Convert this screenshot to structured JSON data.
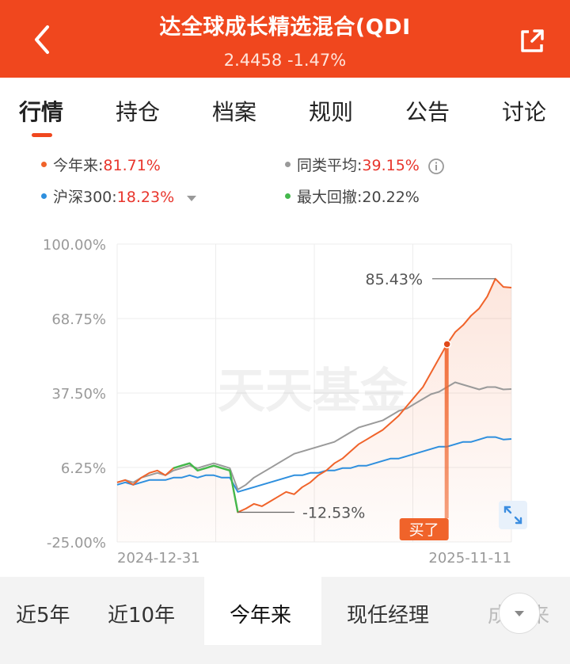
{
  "header": {
    "title": "达全球成长精选混合(QDI",
    "nav_value": "2.4458",
    "change": "-1.47%",
    "back_icon": "chevron-left-icon",
    "share_icon": "share-icon",
    "bg_color": "#f0471e"
  },
  "tabs": [
    {
      "label": "行情",
      "active": true
    },
    {
      "label": "持仓",
      "active": false
    },
    {
      "label": "档案",
      "active": false
    },
    {
      "label": "规则",
      "active": false
    },
    {
      "label": "公告",
      "active": false
    },
    {
      "label": "讨论",
      "active": false
    }
  ],
  "legend": {
    "ytd": {
      "label": "今年来:",
      "value": "81.71%",
      "color": "#f0632a"
    },
    "peer": {
      "label": "同类平均:",
      "value": "39.15%",
      "color": "#9a9a9a"
    },
    "index": {
      "label": "沪深300:",
      "value": "18.23%",
      "color": "#2e8fde"
    },
    "drawdown": {
      "label": "最大回撤:",
      "value": "20.22%",
      "color": "#44b84c"
    }
  },
  "chart_data": {
    "type": "line",
    "y_tick_labels": [
      "100.00%",
      "68.75%",
      "37.50%",
      "6.25%",
      "-25.00%"
    ],
    "ylim": [
      -25,
      100
    ],
    "x_tick_labels": [
      "2024-12-31",
      "2025-11-11"
    ],
    "grid": true,
    "watermark": "天天基金",
    "max_annotation": "85.43%",
    "min_annotation": "-12.53%",
    "buy_marker": "买了",
    "series": [
      {
        "name": "今年来",
        "color": "#f0632a",
        "values": [
          0,
          1,
          -1,
          2,
          4,
          5,
          3,
          6,
          7,
          8,
          5,
          6,
          7,
          6,
          5,
          -12.53,
          -11,
          -9,
          -10,
          -8,
          -6,
          -4,
          -5,
          -2,
          0,
          3,
          5,
          8,
          10,
          13,
          16,
          18,
          20,
          22,
          25,
          28,
          32,
          36,
          40,
          46,
          52,
          58,
          63,
          66,
          70,
          73,
          78,
          85.43,
          82,
          81.71
        ]
      },
      {
        "name": "同类平均",
        "color": "#9a9a9a",
        "values": [
          0,
          1,
          0,
          2,
          3,
          4,
          3,
          5,
          6,
          7,
          6,
          7,
          8,
          7,
          6,
          -3,
          -1,
          2,
          4,
          6,
          8,
          10,
          12,
          13,
          14,
          15,
          16,
          17,
          19,
          21,
          23,
          24,
          25,
          26,
          28,
          30,
          31,
          33,
          35,
          37,
          38,
          40,
          42,
          41,
          40,
          39,
          40,
          40,
          39,
          39.15
        ]
      },
      {
        "name": "沪深300",
        "color": "#2e8fde",
        "values": [
          -1,
          0,
          -1,
          0,
          1,
          1,
          1,
          2,
          2,
          3,
          2,
          3,
          3,
          2,
          2,
          -4,
          -3,
          -2,
          -1,
          0,
          1,
          2,
          3,
          3,
          4,
          4,
          5,
          5,
          6,
          6,
          7,
          7,
          8,
          9,
          10,
          10,
          11,
          12,
          13,
          14,
          15,
          15,
          16,
          17,
          17,
          18,
          19,
          19,
          18,
          18.23
        ]
      },
      {
        "name": "最大回撤",
        "color": "#44b84c",
        "start_index": 7,
        "end_index": 15
      }
    ]
  },
  "expand_icon": "expand-icon",
  "periods": [
    {
      "label": "近5年",
      "active": false
    },
    {
      "label": "近10年",
      "active": false
    },
    {
      "label": "今年来",
      "active": true
    },
    {
      "label": "现任经理",
      "active": false
    },
    {
      "label": "成立来",
      "active": false
    }
  ],
  "more_icon": "chevron-down-icon"
}
